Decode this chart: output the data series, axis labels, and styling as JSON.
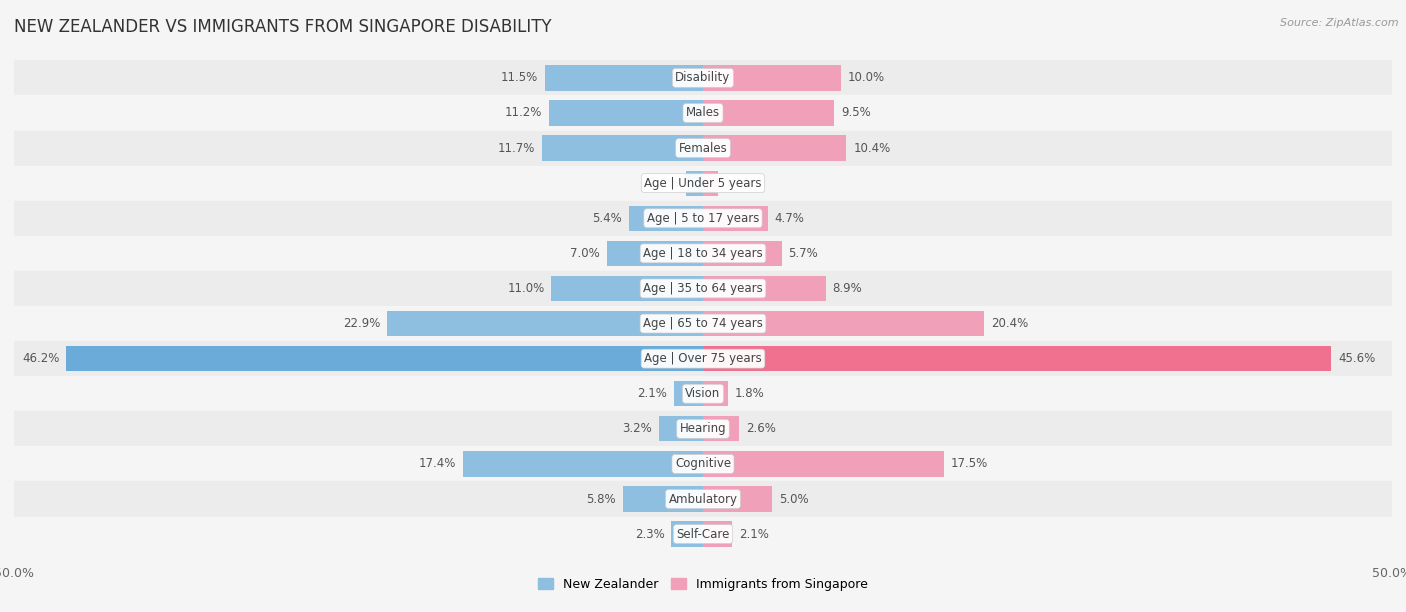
{
  "title": "NEW ZEALANDER VS IMMIGRANTS FROM SINGAPORE DISABILITY",
  "source": "Source: ZipAtlas.com",
  "categories": [
    "Disability",
    "Males",
    "Females",
    "Age | Under 5 years",
    "Age | 5 to 17 years",
    "Age | 18 to 34 years",
    "Age | 35 to 64 years",
    "Age | 65 to 74 years",
    "Age | Over 75 years",
    "Vision",
    "Hearing",
    "Cognitive",
    "Ambulatory",
    "Self-Care"
  ],
  "nz_values": [
    11.5,
    11.2,
    11.7,
    1.2,
    5.4,
    7.0,
    11.0,
    22.9,
    46.2,
    2.1,
    3.2,
    17.4,
    5.8,
    2.3
  ],
  "sg_values": [
    10.0,
    9.5,
    10.4,
    1.1,
    4.7,
    5.7,
    8.9,
    20.4,
    45.6,
    1.8,
    2.6,
    17.5,
    5.0,
    2.1
  ],
  "nz_color": "#8fbfe0",
  "sg_color": "#f0a0b8",
  "nz_color_full": "#6aabda",
  "sg_color_full": "#f07090",
  "nz_label": "New Zealander",
  "sg_label": "Immigrants from Singapore",
  "axis_max": 50.0,
  "row_colors": [
    "#ececec",
    "#f5f5f5"
  ],
  "title_fontsize": 12,
  "label_fontsize": 8.5,
  "value_fontsize": 8.5,
  "bar_height": 0.72
}
